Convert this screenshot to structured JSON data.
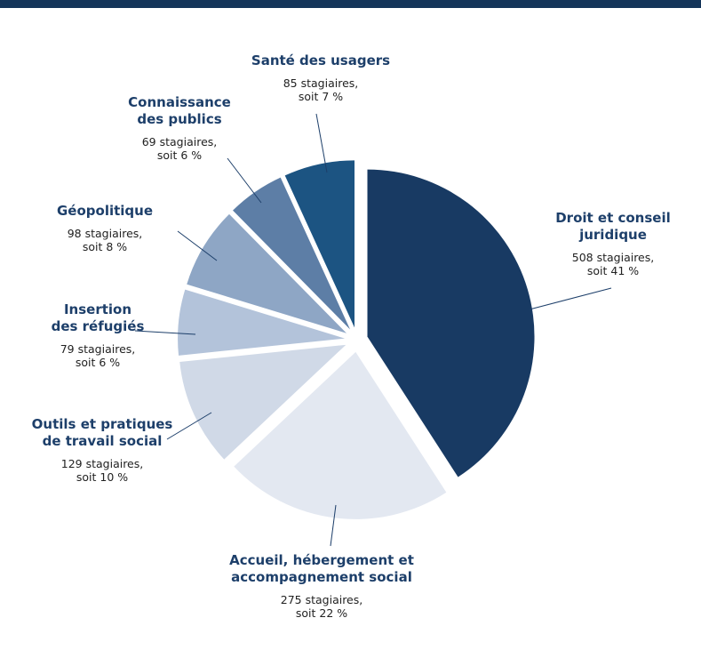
{
  "chart_data": {
    "type": "pie",
    "categories": [
      "Droit et conseil juridique",
      "Accueil, hébergement et accompagnement social",
      "Outils et pratiques de travail social",
      "Insertion des réfugiés",
      "Géopolitique",
      "Connaissance des publics",
      "Santé des usagers"
    ],
    "values": [
      508,
      275,
      129,
      79,
      98,
      69,
      85
    ],
    "percent_labels": [
      "41 %",
      "22 %",
      "10 %",
      "6 %",
      "8 %",
      "6 %",
      "7 %"
    ],
    "slices": [
      {
        "name_lines": [
          "Droit et conseil",
          "juridique"
        ],
        "value_lines": [
          "508 stagiaires,",
          "soit 41 %"
        ],
        "color": "#183a63"
      },
      {
        "name_lines": [
          "Accueil, hébergement et",
          "accompagnement social"
        ],
        "value_lines": [
          "275 stagiaires,",
          "soit 22 %"
        ],
        "color": "#e3e8f1"
      },
      {
        "name_lines": [
          "Outils et pratiques",
          "de travail social"
        ],
        "value_lines": [
          "129 stagiaires,",
          "soit 10 %"
        ],
        "color": "#d0d9e7"
      },
      {
        "name_lines": [
          "Insertion",
          "des réfugiés"
        ],
        "value_lines": [
          "79 stagiaires,",
          "soit 6 %"
        ],
        "color": "#b3c3da"
      },
      {
        "name_lines": [
          "Géopolitique"
        ],
        "value_lines": [
          "98 stagiaires,",
          "soit 8 %"
        ],
        "color": "#8ea6c5"
      },
      {
        "name_lines": [
          "Connaissance",
          "des publics"
        ],
        "value_lines": [
          "69 stagiaires,",
          "soit 6 %"
        ],
        "color": "#5d7ea6"
      },
      {
        "name_lines": [
          "Santé des usagers"
        ],
        "value_lines": [
          "85 stagiaires,",
          "soit 7 %"
        ],
        "color": "#1c5482"
      }
    ]
  }
}
